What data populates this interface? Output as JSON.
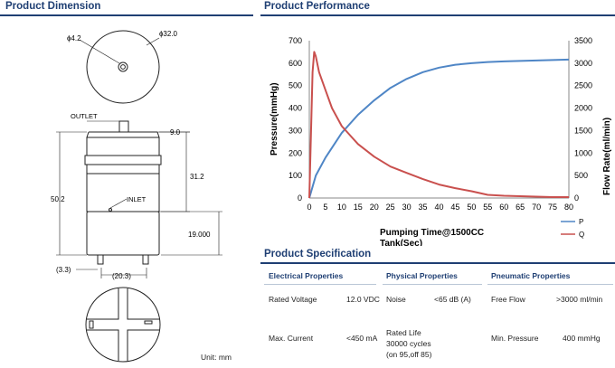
{
  "left_section": {
    "title": "Product Dimension",
    "labels": {
      "d_small": "ɸ4.2",
      "d_large": "ɸ32.0",
      "outlet": "OUTLET",
      "dim_9": "9.0",
      "dim_312": "31.2",
      "dim_502": "50.2",
      "inlet": "INLET",
      "dim_19": "19.000",
      "dim_33": "(3.3)",
      "dim_203": "(20.3)"
    },
    "unit_note": "Unit: mm"
  },
  "right_section": {
    "title": "Product Performance"
  },
  "chart_data": {
    "type": "line",
    "xlabel": "Pumping Time@1500CC",
    "xlabel_cut": "Tank(Sec)",
    "ylabel_left": "Pressure(mmHg)",
    "ylabel_right": "Flow Rate(ml/min)",
    "x_ticks": [
      0,
      5,
      10,
      15,
      20,
      25,
      30,
      35,
      40,
      45,
      50,
      55,
      60,
      65,
      70,
      75,
      80
    ],
    "y_left_ticks": [
      0,
      100,
      200,
      300,
      400,
      500,
      600,
      700
    ],
    "y_right_ticks": [
      0,
      500,
      1000,
      1500,
      2000,
      2500,
      3000,
      3500
    ],
    "xlim": [
      0,
      80
    ],
    "ylim_left": [
      0,
      700
    ],
    "ylim_right": [
      0,
      3500
    ],
    "grid": false,
    "legend_position": "bottom-right",
    "series": [
      {
        "name": "P",
        "axis": "left",
        "color": "#4f86c6",
        "x": [
          0,
          2,
          5,
          10,
          15,
          20,
          25,
          30,
          35,
          40,
          45,
          50,
          55,
          60,
          65,
          70,
          75,
          80
        ],
        "y": [
          0,
          100,
          180,
          290,
          370,
          435,
          490,
          530,
          560,
          580,
          593,
          600,
          605,
          608,
          610,
          612,
          614,
          616
        ]
      },
      {
        "name": "Q",
        "axis": "right",
        "color": "#c9504e",
        "x": [
          0,
          1,
          1.5,
          2,
          3,
          5,
          7,
          10,
          15,
          20,
          25,
          30,
          35,
          40,
          45,
          50,
          55,
          60,
          65,
          70,
          75,
          80
        ],
        "y": [
          0,
          2800,
          3250,
          3150,
          2800,
          2400,
          2000,
          1600,
          1200,
          920,
          700,
          560,
          420,
          300,
          220,
          150,
          70,
          50,
          40,
          30,
          20,
          20
        ]
      }
    ]
  },
  "spec": {
    "title": "Product Specification",
    "columns": [
      {
        "header": "Electrical Properties",
        "rows": [
          {
            "label": "Rated Voltage",
            "value": "12.0 VDC"
          },
          {
            "label": "Max. Current",
            "value": "<450 mA"
          }
        ]
      },
      {
        "header": "Physical Properties",
        "rows": [
          {
            "label": "Noise",
            "value": "<65 dB (A)"
          },
          {
            "label_lines": [
              "Rated Life",
              "30000 cycles",
              "(on 95,off 85)"
            ],
            "value": ""
          }
        ]
      },
      {
        "header": "Pneumatic Properties",
        "rows": [
          {
            "label": "Free Flow",
            "value": ">3000 ml/min"
          },
          {
            "label": "Min. Pressure",
            "value": "400 mmHg"
          }
        ]
      }
    ]
  }
}
